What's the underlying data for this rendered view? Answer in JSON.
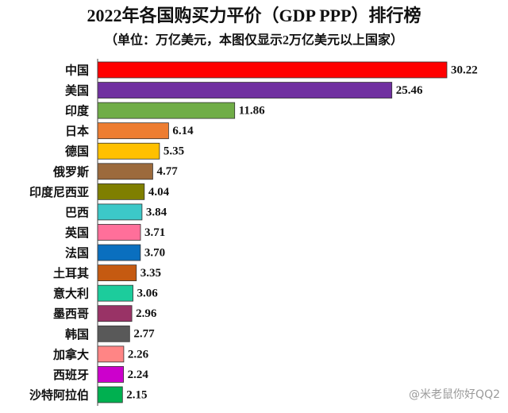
{
  "chart_data": {
    "type": "bar",
    "orientation": "horizontal",
    "title": "2022年各国购买力平价（GDP PPP）排行榜",
    "subtitle": "（单位：万亿美元，本图仅显示2万亿美元以上国家）",
    "categories": [
      "中国",
      "美国",
      "印度",
      "日本",
      "德国",
      "俄罗斯",
      "印度尼西亚",
      "巴西",
      "英国",
      "法国",
      "土耳其",
      "意大利",
      "墨西哥",
      "韩国",
      "加拿大",
      "西班牙",
      "沙特阿拉伯"
    ],
    "values": [
      30.22,
      25.46,
      11.86,
      6.14,
      5.35,
      4.77,
      4.04,
      3.84,
      3.71,
      3.7,
      3.35,
      3.06,
      2.96,
      2.77,
      2.26,
      2.24,
      2.15
    ],
    "value_labels": [
      "30.22",
      "25.46",
      "11.86",
      "6.14",
      "5.35",
      "4.77",
      "4.04",
      "3.84",
      "3.71",
      "3.70",
      "3.35",
      "3.06",
      "2.96",
      "2.77",
      "2.26",
      "2.24",
      "2.15"
    ],
    "colors": [
      "#ff0000",
      "#7030a0",
      "#70ad47",
      "#ed7d31",
      "#ffc000",
      "#9c6a3c",
      "#7f7f00",
      "#3cc8c8",
      "#ff6f9a",
      "#0a6fbf",
      "#c55a11",
      "#1ccc9c",
      "#993366",
      "#595959",
      "#ff8585",
      "#cc00cc",
      "#00b050"
    ],
    "watermark": "@米老鼠你好QQ2"
  }
}
